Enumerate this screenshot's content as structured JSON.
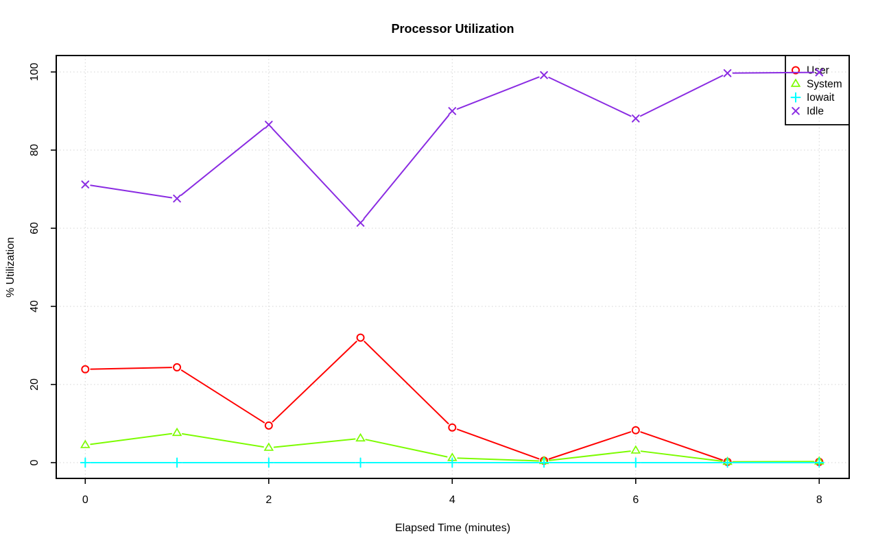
{
  "window": {
    "background": "#ffffff"
  },
  "chart_data": {
    "type": "line",
    "title": "Processor Utilization",
    "xlabel": "Elapsed Time (minutes)",
    "ylabel": "% Utilization",
    "x": [
      0,
      1,
      2,
      3,
      4,
      5,
      6,
      7,
      8
    ],
    "xlim": [
      0,
      8
    ],
    "ylim": [
      0,
      100
    ],
    "xticks": [
      0,
      2,
      4,
      6,
      8
    ],
    "yticks": [
      0,
      20,
      40,
      60,
      80,
      100
    ],
    "grid": "dotted",
    "grid_color": "#D3D3D3",
    "frame_color": "#000000",
    "legend_position": "top-right",
    "legend": [
      "User",
      "System",
      "Iowait",
      "Idle"
    ],
    "series": [
      {
        "name": "User",
        "color": "#FF0000",
        "marker": "circle",
        "values": [
          23.9,
          24.4,
          9.5,
          32.0,
          9.0,
          0.5,
          8.3,
          0.2,
          0.2
        ]
      },
      {
        "name": "System",
        "color": "#7CFC00",
        "marker": "triangle",
        "values": [
          4.5,
          7.6,
          3.8,
          6.2,
          1.2,
          0.4,
          3.1,
          0.2,
          0.3
        ]
      },
      {
        "name": "Iowait",
        "color": "#00FFFF",
        "marker": "plus",
        "values": [
          0,
          0,
          0,
          0,
          0,
          0,
          0,
          0,
          0
        ]
      },
      {
        "name": "Idle",
        "color": "#8A2BE2",
        "marker": "x",
        "values": [
          71.2,
          67.6,
          86.5,
          61.4,
          90.0,
          99.2,
          88.1,
          99.7,
          99.9
        ]
      }
    ]
  }
}
